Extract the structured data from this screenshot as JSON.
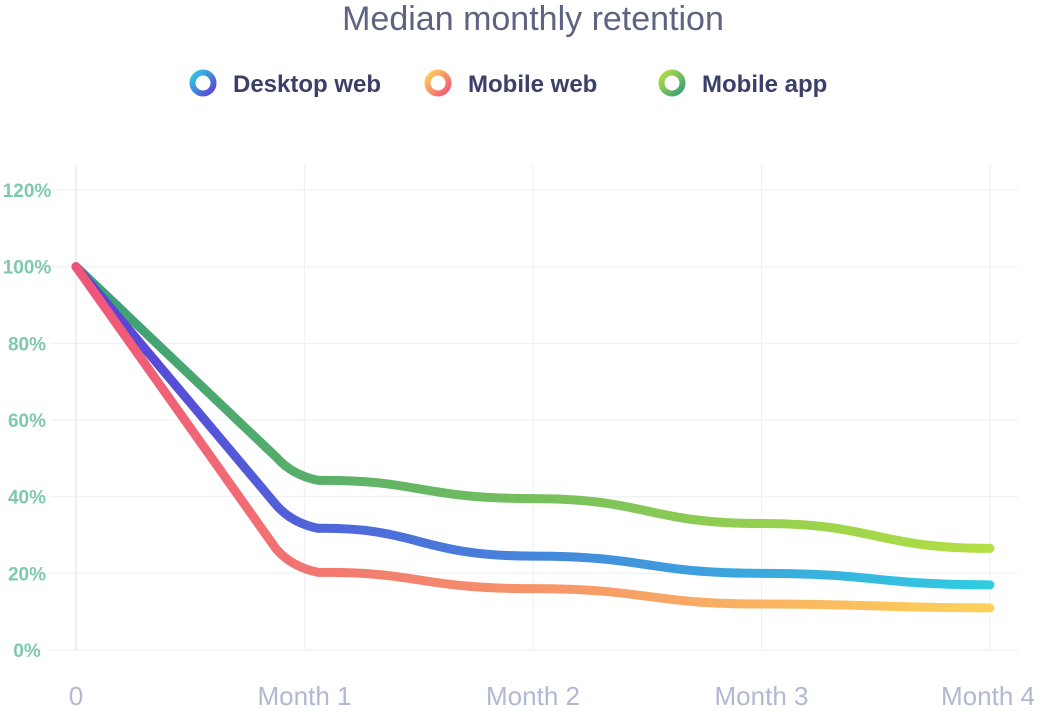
{
  "chart_data": {
    "type": "line",
    "title": "Median monthly retention",
    "categories": [
      "0",
      "Month 1",
      "Month 2",
      "Month 3",
      "Month 4"
    ],
    "ylim": [
      0,
      120
    ],
    "yticks": [
      0,
      20,
      40,
      60,
      80,
      100,
      120
    ],
    "ytick_labels": [
      "0%",
      "20%",
      "40%",
      "60%",
      "80%",
      "100%",
      "120%"
    ],
    "xlabel": "",
    "ylabel": "",
    "grid": true,
    "legend_position": "top-center",
    "series": [
      {
        "name": "Desktop web",
        "values": [
          100,
          32,
          24.5,
          20,
          17
        ],
        "gradient": [
          "#5b3fd6",
          "#2fcde0"
        ]
      },
      {
        "name": "Mobile web",
        "values": [
          100,
          20.5,
          16,
          12,
          11
        ],
        "gradient": [
          "#ef5579",
          "#fdd25a"
        ]
      },
      {
        "name": "Mobile app",
        "values": [
          100,
          44.5,
          39.5,
          33,
          26.5
        ],
        "gradient": [
          "#3a9e78",
          "#b3e042"
        ]
      }
    ]
  }
}
